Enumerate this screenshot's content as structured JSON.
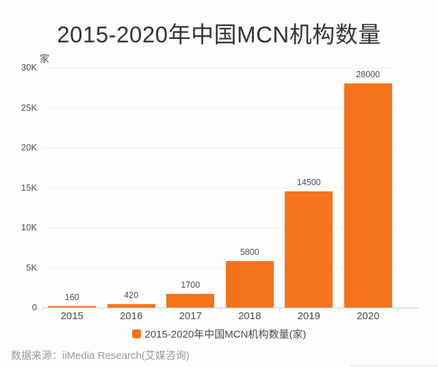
{
  "page": {
    "background": "#fdfdfd"
  },
  "chart_data": {
    "type": "bar",
    "title": "2015-2020年中国MCN机构数量",
    "unit_label": "家",
    "categories": [
      "2015",
      "2016",
      "2017",
      "2018",
      "2019",
      "2020"
    ],
    "values": [
      160,
      420,
      1700,
      5800,
      14500,
      28000
    ],
    "value_labels": [
      "160",
      "420",
      "1700",
      "5800",
      "14500",
      "28000"
    ],
    "ylim": [
      0,
      30000
    ],
    "yticks": [
      0,
      5000,
      10000,
      15000,
      20000,
      25000,
      30000
    ],
    "ytick_labels": [
      "0",
      "5K",
      "10K",
      "15K",
      "20K",
      "25K",
      "30K"
    ],
    "grid": true,
    "bar_color": "#F4731C",
    "legend": {
      "label": "2015-2020年中国MCN机构数量(家)",
      "position": "bottom"
    }
  },
  "footer": {
    "source": "数据来源：iiMedia Research(艾媒咨询)"
  }
}
